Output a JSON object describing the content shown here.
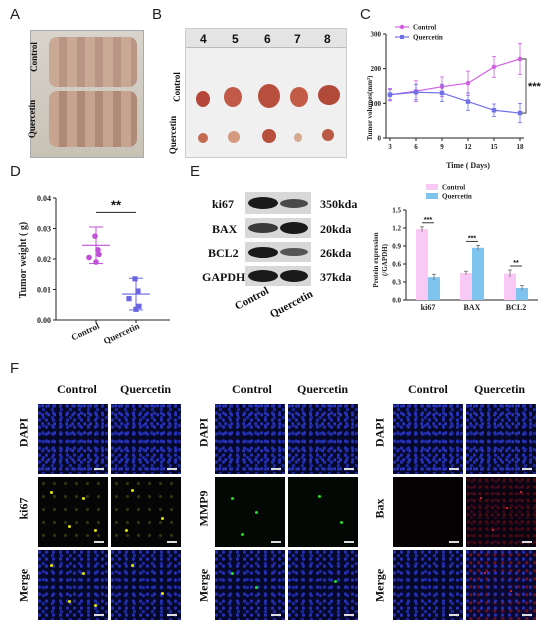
{
  "panels": {
    "a": {
      "letter": "A",
      "groups": [
        "Control",
        "Quercetin"
      ]
    },
    "b": {
      "letter": "B",
      "ruler": [
        "4",
        "5",
        "6",
        "7",
        "8"
      ],
      "groups": [
        "Control",
        "Quercetin"
      ]
    },
    "c": {
      "letter": "C"
    },
    "d": {
      "letter": "D"
    },
    "e": {
      "letter": "E",
      "blot_rows": [
        {
          "name": "ki67",
          "size": "350kda"
        },
        {
          "name": "BAX",
          "size": "20kda"
        },
        {
          "name": "BCL2",
          "size": "26kda"
        },
        {
          "name": "GAPDH",
          "size": "37kda"
        }
      ],
      "groups": [
        "Control",
        "Quercetin"
      ]
    },
    "f": {
      "letter": "F",
      "col_headers": [
        "Control",
        "Quercetin"
      ],
      "blocks": [
        {
          "rows": [
            "DAPI",
            "ki67",
            "Merge"
          ]
        },
        {
          "rows": [
            "DAPI",
            "MMP9",
            "Merge"
          ]
        },
        {
          "rows": [
            "DAPI",
            "Bax",
            "Merge"
          ]
        }
      ]
    }
  },
  "chart_data": [
    {
      "type": "line",
      "panel": "C",
      "x": [
        3,
        6,
        9,
        12,
        15,
        18
      ],
      "xlabel": "Time ( Days)",
      "ylabel": "Tumor volumes(mm³)",
      "xticks": [
        "3",
        "6",
        "9",
        "12",
        "15",
        "18"
      ],
      "yticks": [
        "0",
        "100",
        "200",
        "300"
      ],
      "xlim": [
        3,
        18
      ],
      "ylim": [
        0,
        300
      ],
      "series": [
        {
          "name": "Control",
          "color": "#d060e0",
          "values": [
            125,
            135,
            148,
            158,
            205,
            228
          ],
          "err": [
            18,
            30,
            28,
            35,
            30,
            45
          ]
        },
        {
          "name": "Quercetin",
          "color": "#7070e8",
          "values": [
            125,
            132,
            130,
            105,
            80,
            72
          ],
          "err": [
            15,
            22,
            25,
            25,
            18,
            28
          ]
        }
      ],
      "annotation": "***"
    },
    {
      "type": "scatter",
      "panel": "D",
      "ylabel": "Tumor weight ( g)",
      "categories": [
        "Control",
        "Quercetin"
      ],
      "yticks": [
        "0.00",
        "0.01",
        "0.02",
        "0.03",
        "0.04"
      ],
      "ylim": [
        0,
        0.04
      ],
      "series": [
        {
          "name": "Control",
          "color": "#c050d8",
          "points": [
            0.0275,
            0.023,
            0.0205,
            0.0215,
            0.019
          ],
          "mean": 0.0245,
          "err": 0.006
        },
        {
          "name": "Quercetin",
          "color": "#6a66e0",
          "points": [
            0.0135,
            0.0095,
            0.007,
            0.0045,
            0.0035
          ],
          "mean": 0.0085,
          "err": 0.0052
        }
      ],
      "annotation": "**"
    },
    {
      "type": "bar",
      "panel": "E",
      "ylabel": "Protein expression\n(/GAPDH)",
      "categories": [
        "ki67",
        "BAX",
        "BCL2"
      ],
      "yticks": [
        "0.0",
        "0.3",
        "0.6",
        "0.9",
        "1.2",
        "1.5"
      ],
      "ylim": [
        0,
        1.5
      ],
      "series": [
        {
          "name": "Control",
          "color": "#f7c9f4",
          "values": [
            1.18,
            0.45,
            0.44
          ],
          "err": [
            0.04,
            0.03,
            0.06
          ]
        },
        {
          "name": "Quercetin",
          "color": "#7ec4ee",
          "values": [
            0.38,
            0.87,
            0.2
          ],
          "err": [
            0.05,
            0.04,
            0.04
          ]
        }
      ],
      "significance": [
        "***",
        "***",
        "**"
      ]
    }
  ]
}
